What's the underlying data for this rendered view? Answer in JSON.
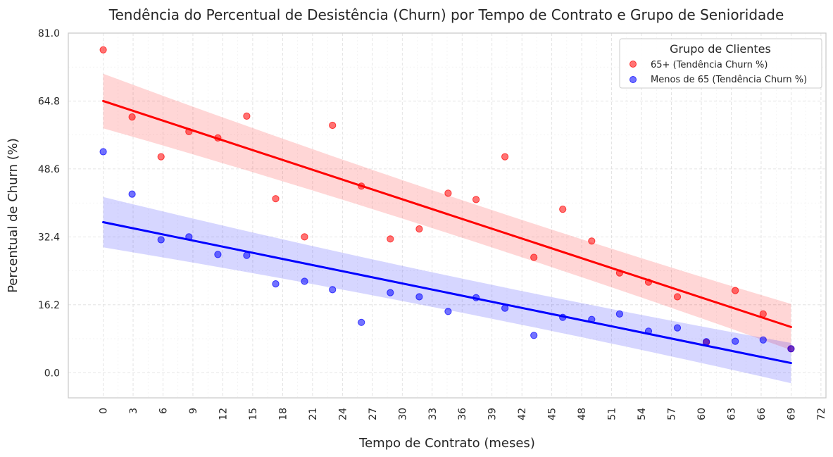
{
  "chart_data": {
    "type": "scatter",
    "title": "Tendência do Percentual de Desistência (Churn) por Tempo de Contrato e Grupo de Senioridade",
    "xlabel": "Tempo de Contrato (meses)",
    "ylabel": "Percentual de Churn (%)",
    "xlim": [
      -3.5,
      72.5
    ],
    "ylim": [
      -6,
      81
    ],
    "xticks": [
      "0",
      "3",
      "6",
      "9",
      "12",
      "15",
      "18",
      "21",
      "24",
      "27",
      "30",
      "33",
      "36",
      "39",
      "42",
      "45",
      "48",
      "51",
      "54",
      "57",
      "60",
      "63",
      "66",
      "69",
      "72"
    ],
    "yticks": [
      "0.0",
      "16.2",
      "32.4",
      "48.6",
      "64.8",
      "81.0"
    ],
    "grid": true,
    "legend": {
      "title": "Grupo de Clientes",
      "position": "top-right"
    },
    "series": [
      {
        "name": "65+ (Tendência Churn %)",
        "color": "#ff0000",
        "x": [
          0,
          2.9,
          5.8,
          8.6,
          11.5,
          14.4,
          17.3,
          20.2,
          23.0,
          25.9,
          28.8,
          31.7,
          34.6,
          37.4,
          40.3,
          43.2,
          46.1,
          49.0,
          51.8,
          54.7,
          57.6,
          60.5,
          63.4,
          66.2,
          69
        ],
        "y": [
          77.0,
          61.0,
          51.5,
          57.5,
          56.0,
          61.2,
          41.5,
          32.4,
          59.0,
          44.5,
          31.9,
          34.3,
          42.8,
          41.3,
          51.5,
          27.5,
          39.0,
          31.4,
          23.8,
          21.6,
          18.1,
          7.2,
          19.6,
          14.0,
          5.7
        ],
        "trend": {
          "y_start": 64.8,
          "y_end": 10.9
        }
      },
      {
        "name": "Menos de 65 (Tendência Churn %)",
        "color": "#0000ff",
        "x": [
          0,
          2.9,
          5.8,
          8.6,
          11.5,
          14.4,
          17.3,
          20.2,
          23.0,
          25.9,
          28.8,
          31.7,
          34.6,
          37.4,
          40.3,
          43.2,
          46.1,
          49.0,
          51.8,
          54.7,
          57.6,
          60.5,
          63.4,
          66.2,
          69
        ],
        "y": [
          52.7,
          42.6,
          31.7,
          32.4,
          28.2,
          28.0,
          21.2,
          21.8,
          19.8,
          12.0,
          19.1,
          18.1,
          14.6,
          17.9,
          15.4,
          8.9,
          13.2,
          12.7,
          14.0,
          9.9,
          10.7,
          7.4,
          7.5,
          7.8,
          5.7
        ],
        "trend": {
          "y_start": 35.9,
          "y_end": 2.3
        }
      }
    ]
  }
}
